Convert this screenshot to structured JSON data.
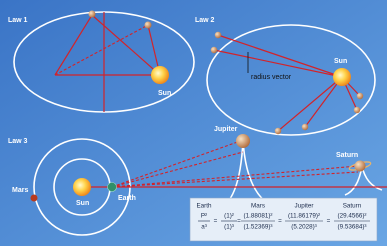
{
  "law1": {
    "label": "Law 1",
    "sun": "Sun"
  },
  "law2": {
    "label": "Law 2",
    "radius_vector": "radius vector",
    "sun": "Sun"
  },
  "law3": {
    "label": "Law 3",
    "sun": "Sun",
    "earth": "Earth",
    "mars": "Mars",
    "jupiter": "Jupiter",
    "saturn": "Saturn"
  },
  "formula": {
    "equals": "=",
    "columns": [
      {
        "name": "Earth",
        "numerator": "P²",
        "denominator": "a³"
      },
      {
        "name": null,
        "numerator": "(1)²",
        "denominator": "(1)³"
      },
      {
        "name": "Mars",
        "numerator": "(1.88081)²",
        "denominator": "(1.52369)³"
      },
      {
        "name": "Jupiter",
        "numerator": "(11.86179)²",
        "denominator": "(5.2028)³"
      },
      {
        "name": "Saturn",
        "numerator": "(29.4566)²",
        "denominator": "(9.53684)³"
      }
    ]
  }
}
